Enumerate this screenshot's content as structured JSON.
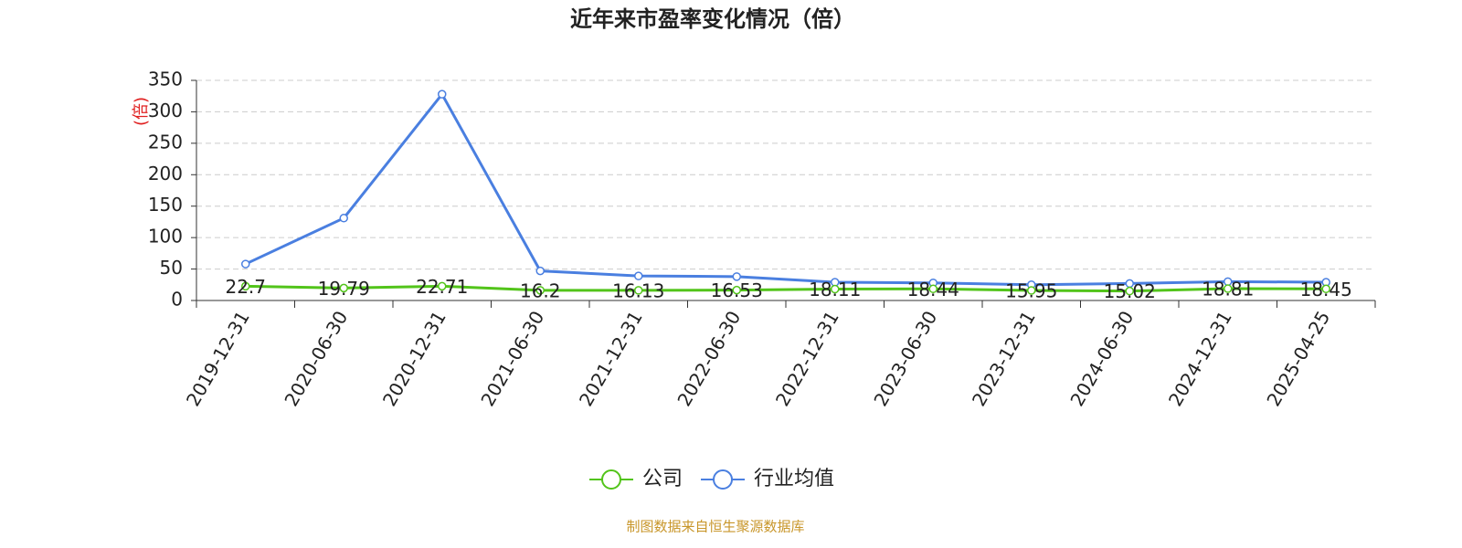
{
  "chart_data": {
    "type": "line",
    "title": "近年来市盈率变化情况（倍）",
    "y_label": "(倍)",
    "categories": [
      "2019-12-31",
      "2020-06-30",
      "2020-12-31",
      "2021-06-30",
      "2021-12-31",
      "2022-06-30",
      "2022-12-31",
      "2023-06-30",
      "2023-12-31",
      "2024-06-30",
      "2024-12-31",
      "2025-04-25"
    ],
    "series": [
      {
        "name": "公司",
        "color": "#52c41a",
        "values": [
          22.7,
          19.79,
          22.71,
          16.2,
          16.13,
          16.53,
          18.11,
          18.44,
          15.95,
          15.02,
          18.81,
          18.45
        ],
        "labels": true
      },
      {
        "name": "行业均值",
        "color": "#4a7fe0",
        "values": [
          58,
          131,
          328,
          47,
          39,
          38,
          29,
          28,
          25,
          27,
          30,
          29
        ],
        "labels": false
      }
    ],
    "ylim": [
      0,
      350
    ],
    "yticks": [
      0,
      50,
      100,
      150,
      200,
      250,
      300,
      350
    ],
    "grid": true,
    "source": "制图数据来自恒生聚源数据库"
  }
}
